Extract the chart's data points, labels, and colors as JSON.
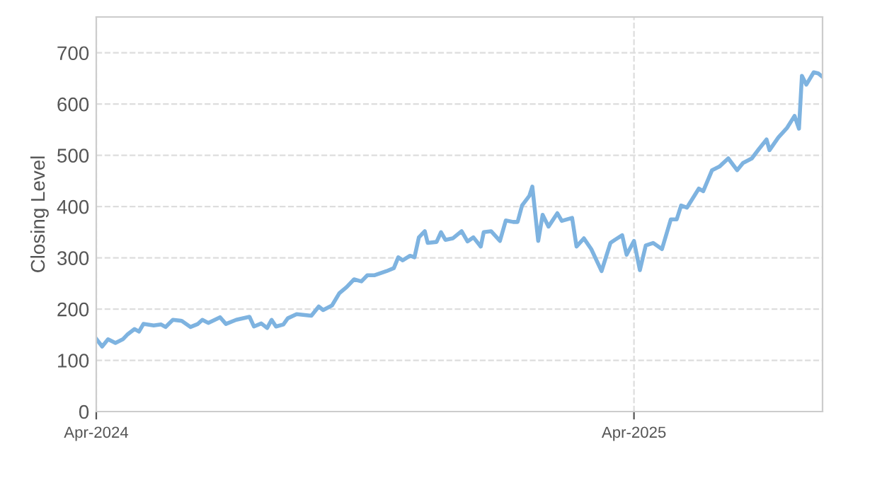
{
  "chart_data": {
    "type": "line",
    "ylabel": "Closing Level",
    "ylim": [
      0,
      770
    ],
    "yticks": [
      0,
      100,
      200,
      300,
      400,
      500,
      600,
      700
    ],
    "xlim": [
      "2024-04-01",
      "2025-08-07"
    ],
    "xticks": [
      {
        "value": "2024-04-01",
        "label": "Apr-2024"
      },
      {
        "value": "2025-04-01",
        "label": "Apr-2025"
      }
    ],
    "grid": true,
    "legend": false,
    "marker": "none",
    "line_style": "solid",
    "series": [
      {
        "color": "#7eb3e0",
        "x": [
          "2024-04-01",
          "2024-04-05",
          "2024-04-09",
          "2024-04-14",
          "2024-04-19",
          "2024-04-22",
          "2024-04-27",
          "2024-04-30",
          "2024-05-03",
          "2024-05-10",
          "2024-05-15",
          "2024-05-18",
          "2024-05-23",
          "2024-05-29",
          "2024-06-04",
          "2024-06-09",
          "2024-06-12",
          "2024-06-16",
          "2024-06-24",
          "2024-06-28",
          "2024-07-05",
          "2024-07-14",
          "2024-07-17",
          "2024-07-22",
          "2024-07-26",
          "2024-07-29",
          "2024-08-01",
          "2024-08-06",
          "2024-08-09",
          "2024-08-15",
          "2024-08-25",
          "2024-08-30",
          "2024-09-02",
          "2024-09-08",
          "2024-09-13",
          "2024-09-18",
          "2024-09-23",
          "2024-09-28",
          "2024-10-02",
          "2024-10-07",
          "2024-10-15",
          "2024-10-20",
          "2024-10-23",
          "2024-10-26",
          "2024-10-31",
          "2024-11-03",
          "2024-11-06",
          "2024-11-10",
          "2024-11-12",
          "2024-11-18",
          "2024-11-21",
          "2024-11-24",
          "2024-11-29",
          "2024-12-05",
          "2024-12-09",
          "2024-12-13",
          "2024-12-18",
          "2024-12-20",
          "2024-12-25",
          "2024-12-31",
          "2025-01-04",
          "2025-01-09",
          "2025-01-12",
          "2025-01-15",
          "2025-01-20",
          "2025-01-22",
          "2025-01-26",
          "2025-01-29",
          "2025-02-02",
          "2025-02-08",
          "2025-02-11",
          "2025-02-18",
          "2025-02-21",
          "2025-02-26",
          "2025-03-03",
          "2025-03-10",
          "2025-03-16",
          "2025-03-19",
          "2025-03-24",
          "2025-03-27",
          "2025-04-01",
          "2025-04-05",
          "2025-04-09",
          "2025-04-14",
          "2025-04-20",
          "2025-04-26",
          "2025-04-30",
          "2025-05-03",
          "2025-05-07",
          "2025-05-15",
          "2025-05-18",
          "2025-05-24",
          "2025-05-29",
          "2025-06-04",
          "2025-06-10",
          "2025-06-14",
          "2025-06-20",
          "2025-06-25",
          "2025-06-30",
          "2025-07-02",
          "2025-07-08",
          "2025-07-14",
          "2025-07-19",
          "2025-07-22",
          "2025-07-24",
          "2025-07-27",
          "2025-08-01",
          "2025-08-04",
          "2025-08-07"
        ],
        "values": [
          142,
          127,
          141,
          134,
          141,
          150,
          161,
          156,
          171,
          168,
          170,
          165,
          179,
          177,
          165,
          171,
          179,
          173,
          184,
          171,
          179,
          185,
          166,
          172,
          163,
          179,
          166,
          170,
          182,
          190,
          187,
          205,
          198,
          207,
          231,
          243,
          258,
          254,
          266,
          266,
          274,
          280,
          301,
          295,
          304,
          301,
          340,
          352,
          329,
          331,
          350,
          335,
          338,
          352,
          332,
          340,
          322,
          350,
          352,
          333,
          373,
          370,
          370,
          402,
          421,
          439,
          333,
          384,
          361,
          387,
          372,
          378,
          322,
          338,
          317,
          274,
          329,
          335,
          344,
          306,
          333,
          276,
          324,
          329,
          317,
          375,
          375,
          402,
          398,
          435,
          430,
          471,
          478,
          494,
          471,
          485,
          494,
          513,
          531,
          510,
          535,
          554,
          577,
          552,
          655,
          638,
          662,
          660,
          653
        ]
      }
    ]
  }
}
